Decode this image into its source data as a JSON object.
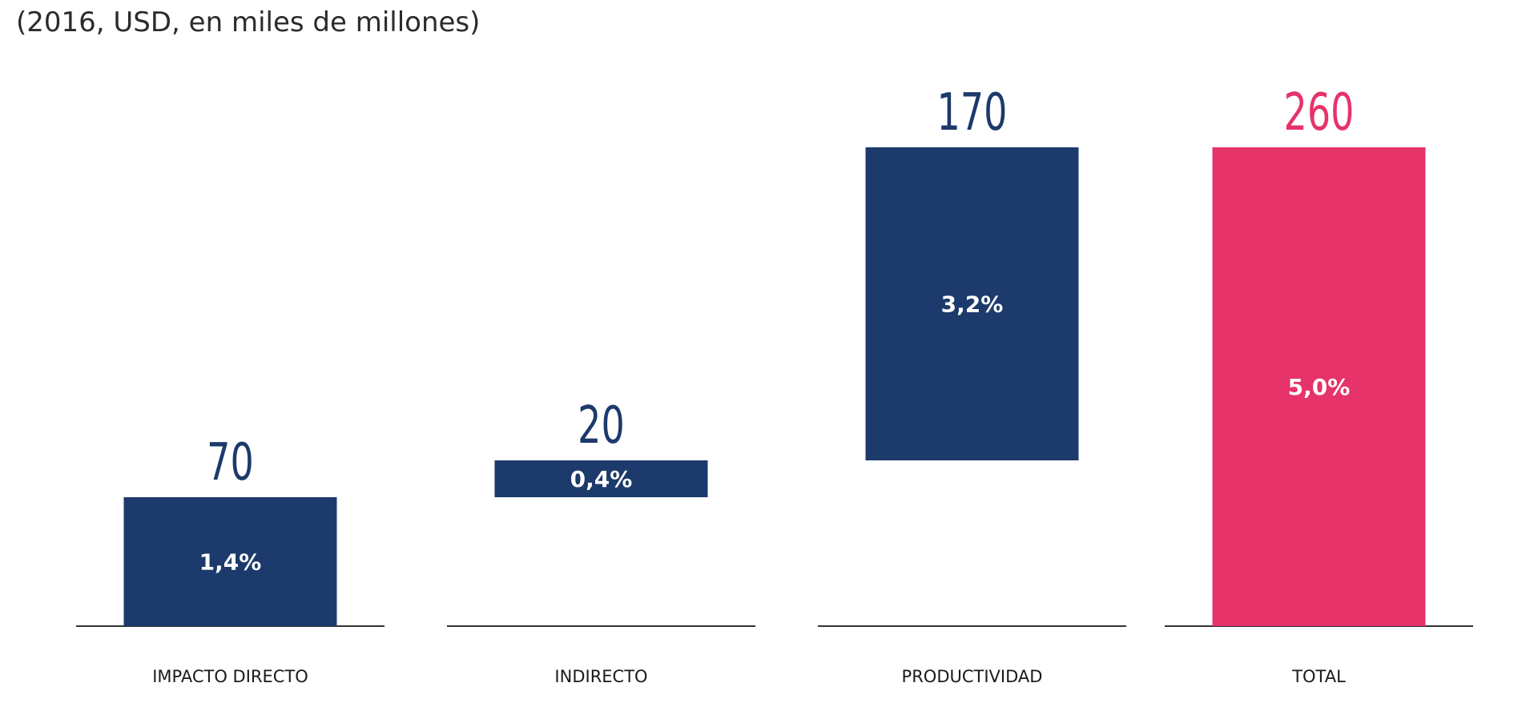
{
  "chart_data": {
    "type": "bar",
    "subtitle": "(2016, USD, en miles de millones)",
    "categories": [
      "IMPACTO DIRECTO",
      "INDIRECTO",
      "PRODUCTIVIDAD",
      "TOTAL"
    ],
    "values": [
      70,
      20,
      170,
      260
    ],
    "value_labels": [
      "70",
      "20",
      "170",
      "260"
    ],
    "percent_labels": [
      "1,4%",
      "0,4%",
      "3,2%",
      "5,0%"
    ],
    "waterfall_bases": [
      0,
      70,
      90,
      0
    ],
    "ylim": [
      0,
      260
    ],
    "grid": false,
    "legend": "none",
    "colors": {
      "component_bar": "#1c3a6b",
      "total_bar": "#e6336a",
      "component_value_text": "#1c3a6b",
      "total_value_text": "#e6336a",
      "percent_text": "#ffffff",
      "category_text": "#1a1a1a",
      "baseline": "#333333"
    }
  }
}
